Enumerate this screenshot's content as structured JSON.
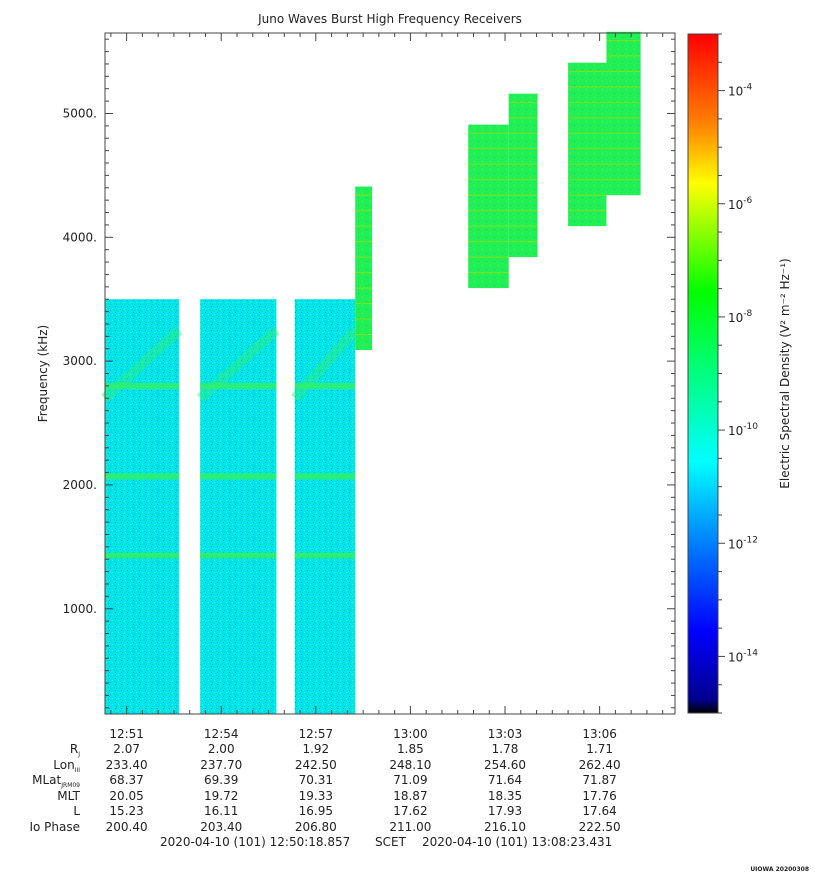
{
  "chart_data": {
    "type": "heatmap",
    "title": "Juno Waves Burst High Frequency Receivers",
    "ylabel": "Frequency (kHz)",
    "colorbar_label": "Electric Spectral Density (V² m⁻² Hz⁻¹)",
    "ylim": [
      150,
      5650
    ],
    "y_ticks": [
      1000,
      2000,
      3000,
      4000,
      5000
    ],
    "y_tick_labels": [
      "1000.",
      "2000.",
      "3000.",
      "4000.",
      "5000."
    ],
    "x_range_minutes": [
      "12:50:18.857",
      "13:08:23.431"
    ],
    "x_tick_labels": [
      "12:51",
      "12:54",
      "12:57",
      "13:00",
      "13:03",
      "13:06"
    ],
    "x_tick_times": [
      "12:51",
      "12:54",
      "12:57",
      "13:00",
      "13:03",
      "13:06"
    ],
    "colorbar_range_exponent": [
      -15,
      -3
    ],
    "colorbar_ticks": [
      {
        "base": "10",
        "exp": "-4",
        "value": -4
      },
      {
        "base": "10",
        "exp": "-6",
        "value": -6
      },
      {
        "base": "10",
        "exp": "-8",
        "value": -8
      },
      {
        "base": "10",
        "exp": "-10",
        "value": -10
      },
      {
        "base": "10",
        "exp": "-12",
        "value": -12
      },
      {
        "base": "10",
        "exp": "-14",
        "value": -14
      }
    ],
    "blocks": [
      {
        "t0": "12:50:18",
        "t1": "12:52:40",
        "f0": 150,
        "f1": 3500,
        "level": -11.7
      },
      {
        "t0": "12:53:20",
        "t1": "12:55:45",
        "f0": 150,
        "f1": 3500,
        "level": -11.7
      },
      {
        "t0": "12:56:20",
        "t1": "12:58:15",
        "f0": 150,
        "f1": 3500,
        "level": -11.7
      },
      {
        "t0": "12:58:15",
        "t1": "12:58:47",
        "f0": 3090,
        "f1": 4410,
        "level": -9.6
      },
      {
        "t0": "13:01:50",
        "t1": "13:03:07",
        "f0": 3590,
        "f1": 4910,
        "level": -9.6
      },
      {
        "t0": "13:03:07",
        "t1": "13:04:02",
        "f0": 3840,
        "f1": 5160,
        "level": -9.6
      },
      {
        "t0": "13:05:00",
        "t1": "13:06:13",
        "f0": 4090,
        "f1": 5410,
        "level": -9.6
      },
      {
        "t0": "13:06:13",
        "t1": "13:07:18",
        "f0": 4340,
        "f1": 5660,
        "level": -9.6
      }
    ],
    "emission_lines_kHz": [
      1430,
      2070,
      2800
    ]
  },
  "ephemeris": {
    "rows": [
      {
        "label": "R",
        "sub": "J",
        "values": [
          "2.07",
          "2.00",
          "1.92",
          "1.85",
          "1.78",
          "1.71"
        ]
      },
      {
        "label": "Lon",
        "sub": "III",
        "values": [
          "233.40",
          "237.70",
          "242.50",
          "248.10",
          "254.60",
          "262.40"
        ]
      },
      {
        "label": "MLat",
        "sub": "JRM09",
        "values": [
          "68.37",
          "69.39",
          "70.31",
          "71.09",
          "71.64",
          "71.87"
        ]
      },
      {
        "label": "MLT",
        "sub": "",
        "values": [
          "20.05",
          "19.72",
          "19.33",
          "18.87",
          "18.35",
          "17.76"
        ]
      },
      {
        "label": "L",
        "sub": "",
        "values": [
          "15.23",
          "16.11",
          "16.95",
          "17.62",
          "17.93",
          "17.64"
        ]
      },
      {
        "label": "Io Phase",
        "sub": "",
        "values": [
          "200.40",
          "203.40",
          "206.80",
          "211.00",
          "216.10",
          "222.50"
        ]
      }
    ]
  },
  "footer": {
    "start": "2020-04-10 (101) 12:50:18.857",
    "scet": "SCET",
    "end": "2020-04-10 (101) 13:08:23.431"
  },
  "credit": "UIOWA 20200308"
}
